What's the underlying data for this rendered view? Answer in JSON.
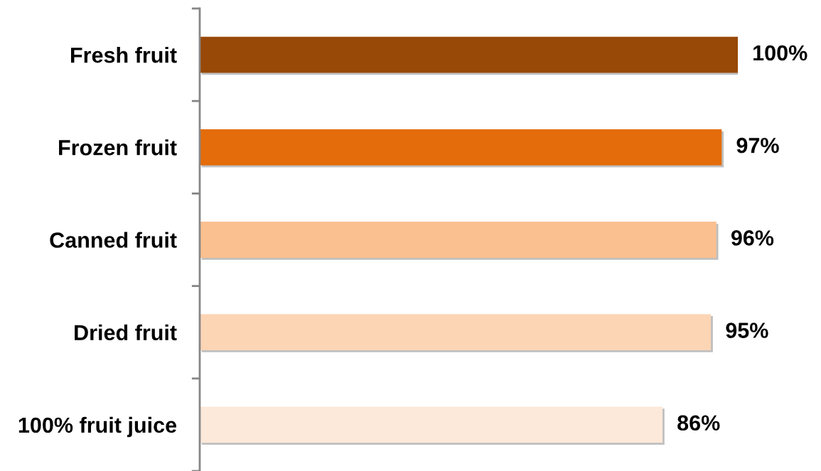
{
  "chart_data": {
    "type": "bar",
    "orientation": "horizontal",
    "categories": [
      "Fresh fruit",
      "Frozen fruit",
      "Canned fruit",
      "Dried fruit",
      "100% fruit juice"
    ],
    "values": [
      100,
      97,
      96,
      95,
      86
    ],
    "colors": [
      "#984807",
      "#e46c0a",
      "#fac090",
      "#fcd5b5",
      "#fde9d9"
    ],
    "value_labels": [
      "100%",
      "97%",
      "96%",
      "95%",
      "86%"
    ],
    "tick_labels": "y"
  }
}
